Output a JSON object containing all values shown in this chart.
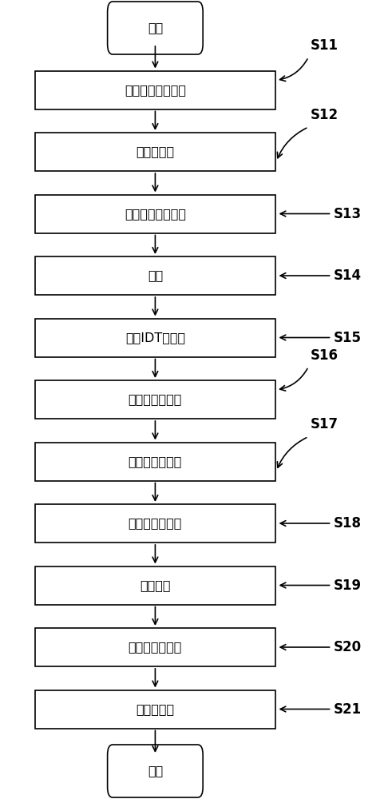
{
  "bg_color": "#ffffff",
  "box_color": "#ffffff",
  "box_edge_color": "#000000",
  "arrow_color": "#000000",
  "font_size": 11.5,
  "label_font_size": 12,
  "steps": [
    {
      "id": "start",
      "type": "rounded",
      "text": "开始",
      "label": "",
      "label_side": ""
    },
    {
      "id": "s11",
      "type": "rect",
      "text": "提供压电材料衬底",
      "label": "S11",
      "label_side": "right_curve_up"
    },
    {
      "id": "s12",
      "type": "rect",
      "text": "涂覆光刻胶",
      "label": "S12",
      "label_side": "right_curve_down"
    },
    {
      "id": "s13",
      "type": "rect",
      "text": "曝光、烘烤、显影",
      "label": "S13",
      "label_side": "right_straight"
    },
    {
      "id": "s14",
      "type": "rect",
      "text": "蚀刻",
      "label": "S14",
      "label_side": "right_straight"
    },
    {
      "id": "s15",
      "type": "rect",
      "text": "沉积IDT金属层",
      "label": "S15",
      "label_side": "right_straight"
    },
    {
      "id": "s16",
      "type": "rect",
      "text": "沉积第一介质层",
      "label": "S16",
      "label_side": "right_curve_up"
    },
    {
      "id": "s17",
      "type": "rect",
      "text": "减薄第一介质层",
      "label": "S17",
      "label_side": "right_curve_down"
    },
    {
      "id": "s18",
      "type": "rect",
      "text": "沉积第二介质层",
      "label": "S18",
      "label_side": "right_straight"
    },
    {
      "id": "s19",
      "type": "rect",
      "text": "提供衬底",
      "label": "S19",
      "label_side": "right_straight"
    },
    {
      "id": "s20",
      "type": "rect",
      "text": "沉积第三介质层",
      "label": "S20",
      "label_side": "right_straight"
    },
    {
      "id": "s21",
      "type": "rect",
      "text": "抛光，键合",
      "label": "S21",
      "label_side": "right_straight"
    },
    {
      "id": "end",
      "type": "rounded",
      "text": "结束",
      "label": "",
      "label_side": ""
    }
  ],
  "fig_width": 4.86,
  "fig_height": 10.0
}
